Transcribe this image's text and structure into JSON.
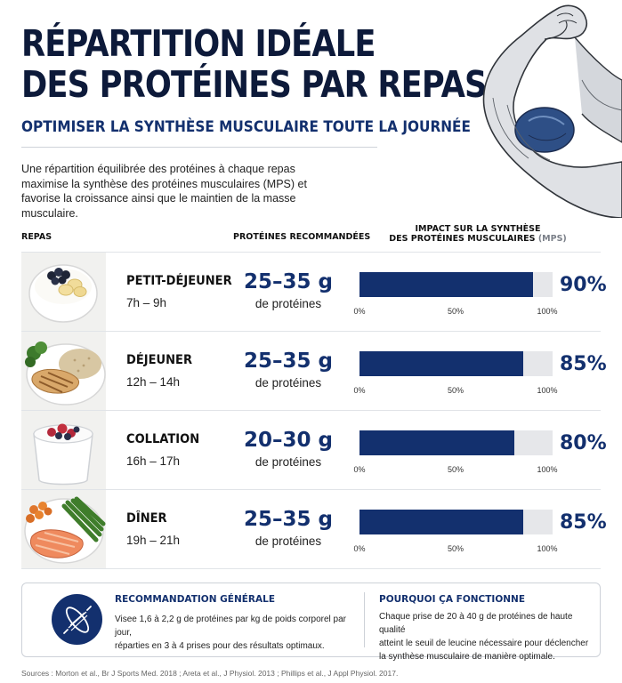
{
  "title_line1": "RÉPARTITION IDÉALE",
  "title_line2": "DES PROTÉINES PAR REPAS",
  "subtitle": "OPTIMISER LA SYNTHÈSE MUSCULAIRE TOUTE LA JOURNÉE",
  "intro": "Une répartition équilibrée des protéines à chaque repas maximise la synthèse des protéines musculaires (MPS) et favorise la croissance ainsi que le maintien de la masse musculaire.",
  "columns": {
    "meal": "REPAS",
    "protein": "PROTÉINES RECOMMANDÉES",
    "impact_line1": "IMPACT SUR LA SYNTHÈSE",
    "impact_line2": "DES PROTÉINES MUSCULAIRES",
    "impact_abbr": "(MPS)"
  },
  "meals": [
    {
      "name": "PETIT-DÉJEUNER",
      "time": "7h – 9h",
      "protein": "25–35 g",
      "unit": "de protéines",
      "mps_label": "90%",
      "image": "yogurt-blueberries-banana"
    },
    {
      "name": "DÉJEUNER",
      "time": "12h – 14h",
      "protein": "25–35 g",
      "unit": "de protéines",
      "mps_label": "85%",
      "image": "chicken-quinoa-broccoli"
    },
    {
      "name": "COLLATION",
      "time": "16h – 17h",
      "protein": "20–30 g",
      "unit": "de protéines",
      "mps_label": "80%",
      "image": "yogurt-berries-glass"
    },
    {
      "name": "DÎNER",
      "time": "19h – 21h",
      "protein": "25–35 g",
      "unit": "de protéines",
      "mps_label": "85%",
      "image": "salmon-carrots-green-beans"
    }
  ],
  "chart_data": {
    "type": "bar",
    "orientation": "horizontal",
    "categories": [
      "PETIT-DÉJEUNER",
      "DÉJEUNER",
      "COLLATION",
      "DÎNER"
    ],
    "values": [
      90,
      85,
      80,
      85
    ],
    "xlim": [
      0,
      100
    ],
    "ticks": [
      "0%",
      "50%",
      "100%"
    ],
    "ylabel": "IMPACT SUR LA SYNTHÈSE DES PROTÉINES MUSCULAIRES (MPS)",
    "bar_color": "#13306e",
    "track_color": "#e6e7ea",
    "grid": false,
    "legend": "none"
  },
  "recommendation": {
    "title": "RECOMMANDATION GÉNÉRALE",
    "line1": "Visee 1,6 à 2,2 g de protéines par kg de poids corporel par jour,",
    "line2": "réparties en 3 à 4 prises pour des résultats optimaux.",
    "icon": "muscle-fiber-icon"
  },
  "why": {
    "title": "POURQUOI ÇA FONCTIONNE",
    "line1": "Chaque prise de 20 à 40 g de protéines de haute qualité",
    "line2": "atteint le seuil de leucine nécessaire pour déclencher",
    "line3": "la synthèse musculaire de manière optimale."
  },
  "sources": "Sources : Morton et al., Br J Sports Med. 2018 ; Areta et al., J Physiol. 2013 ; Phillips et al., J Appl Physiol. 2017.",
  "colors": {
    "navy": "#13306e",
    "title": "#0d1a3a",
    "track": "#e6e7ea"
  }
}
